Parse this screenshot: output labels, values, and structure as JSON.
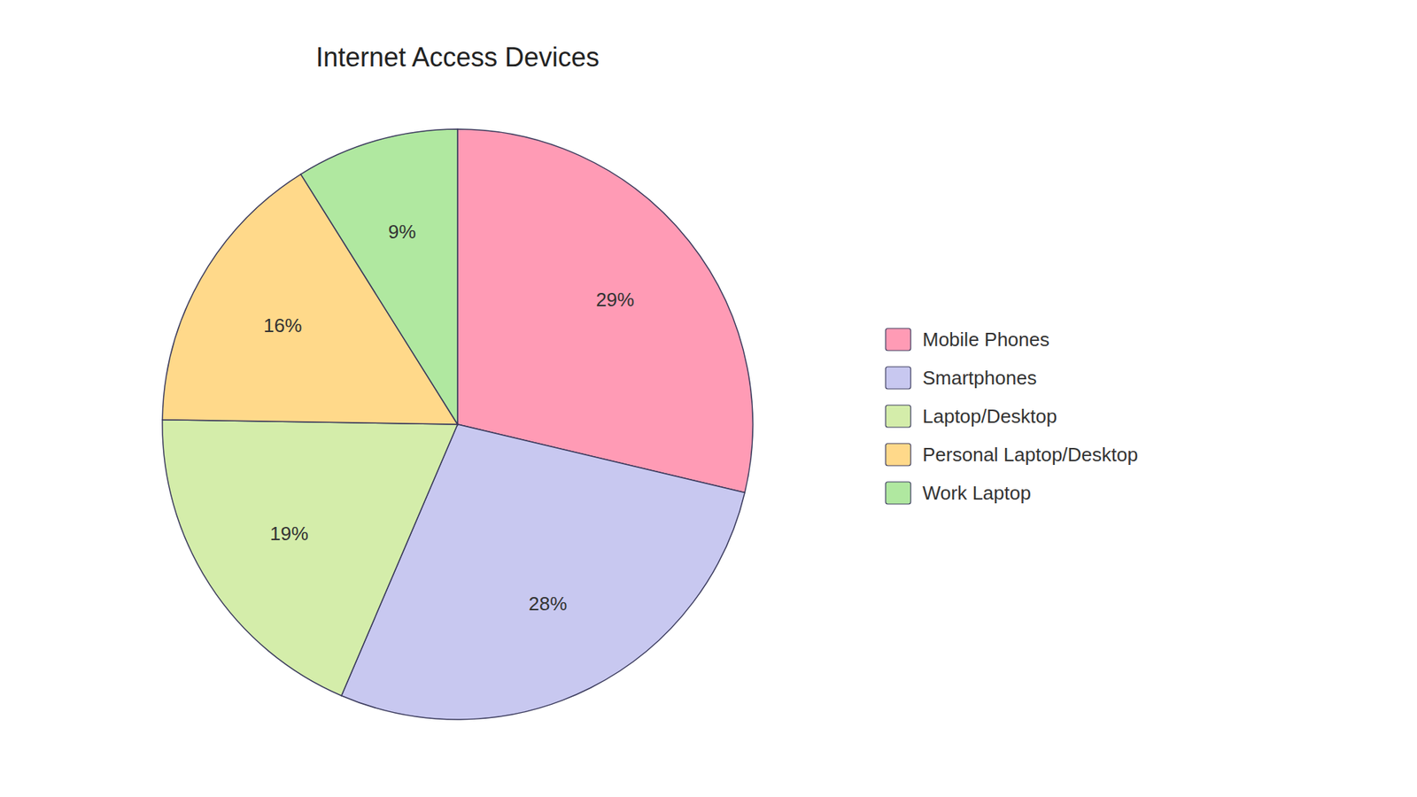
{
  "chart_data": {
    "type": "pie",
    "title": "Internet Access Devices",
    "categories": [
      "Mobile Phones",
      "Smartphones",
      "Laptop/Desktop",
      "Personal Laptop/Desktop",
      "Work Laptop"
    ],
    "values": [
      29,
      28,
      19,
      16,
      9
    ],
    "value_labels": [
      "29%",
      "28%",
      "19%",
      "16%",
      "9%"
    ],
    "colors": [
      "#FF9BB5",
      "#C8C8F0",
      "#D4EDAA",
      "#FFD98A",
      "#B0E8A0"
    ],
    "data_labels": true,
    "legend": "right"
  }
}
